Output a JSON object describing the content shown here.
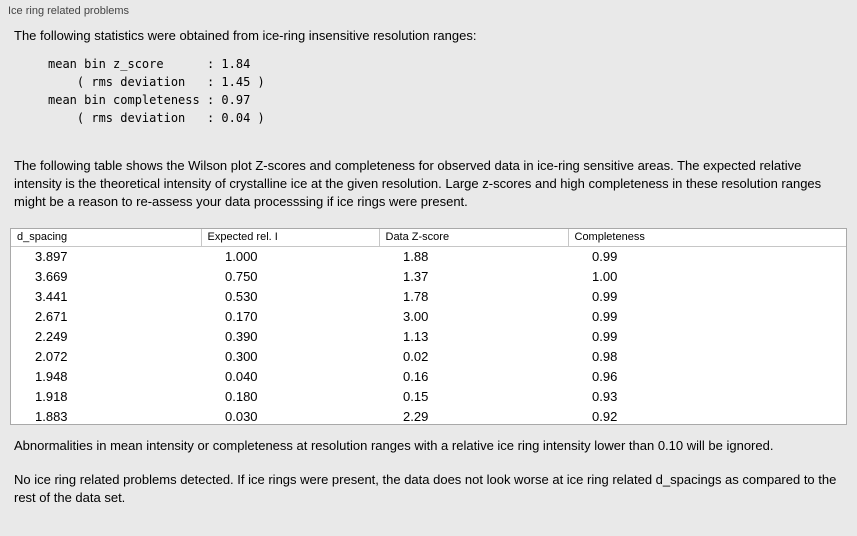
{
  "panel": {
    "title": "Ice ring related problems"
  },
  "texts": {
    "intro": "The following statistics were obtained from ice-ring insensitive resolution ranges:",
    "stats": "mean bin z_score      : 1.84\n    ( rms deviation   : 1.45 )\nmean bin completeness : 0.97\n    ( rms deviation   : 0.04 )",
    "description": "The following table shows the Wilson plot Z-scores and completeness for observed data in ice-ring sensitive areas. The expected relative intensity is the theoretical intensity of crystalline ice at the given resolution. Large z-scores and high completeness in these resolution ranges might be a reason to re-assess your data processsing if ice rings were present.",
    "ignore_note": "Abnormalities in mean intensity or completeness at resolution ranges with a relative ice ring intensity lower than 0.10 will be ignored.",
    "conclusion": "No ice ring related problems detected. If ice rings were present, the data does not look worse at ice ring related d_spacings as compared to the rest of the data set."
  },
  "table": {
    "columns": [
      "d_spacing",
      "Expected rel. I",
      "Data Z-score",
      "Completeness"
    ],
    "rows": [
      [
        "3.897",
        "1.000",
        "1.88",
        "0.99"
      ],
      [
        "3.669",
        "0.750",
        "1.37",
        "1.00"
      ],
      [
        "3.441",
        "0.530",
        "1.78",
        "0.99"
      ],
      [
        "2.671",
        "0.170",
        "3.00",
        "0.99"
      ],
      [
        "2.249",
        "0.390",
        "1.13",
        "0.99"
      ],
      [
        "2.072",
        "0.300",
        "0.02",
        "0.98"
      ],
      [
        "1.948",
        "0.040",
        "0.16",
        "0.96"
      ],
      [
        "1.918",
        "0.180",
        "0.15",
        "0.93"
      ],
      [
        "1.883",
        "0.030",
        "2.29",
        "0.92"
      ]
    ]
  }
}
